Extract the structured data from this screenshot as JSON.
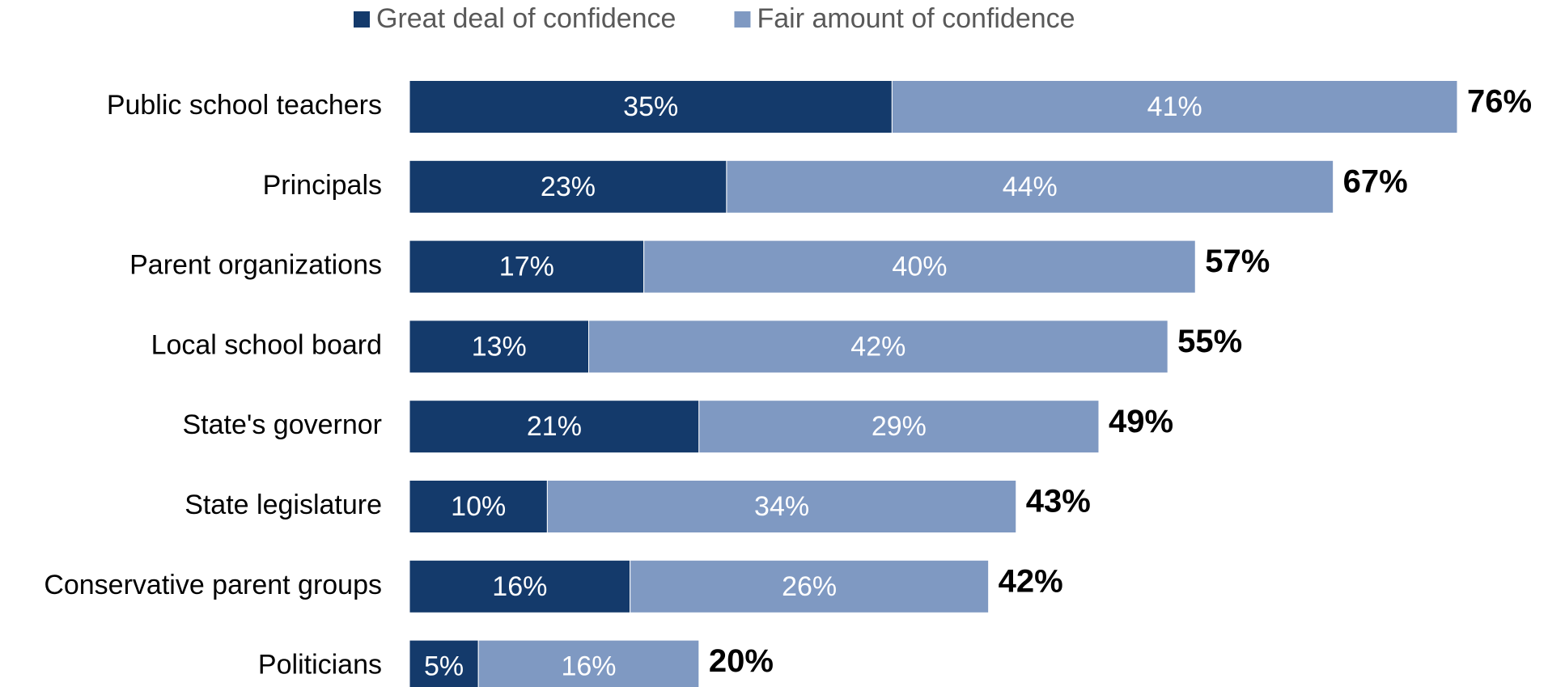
{
  "chart_data": {
    "type": "stacked-bar-horizontal",
    "categories": [
      "Public school teachers",
      "Principals",
      "Parent organizations",
      "Local school board",
      "State's governor",
      "State legislature",
      "Conservative parent groups",
      "Politicians"
    ],
    "series": [
      {
        "name": "Great deal of confidence",
        "color": "#143a6b",
        "values": [
          35,
          23,
          17,
          13,
          21,
          10,
          16,
          5
        ],
        "value_labels": [
          "35%",
          "23%",
          "17%",
          "13%",
          "21%",
          "10%",
          "16%",
          "5%"
        ]
      },
      {
        "name": "Fair amount of confidence",
        "color": "#7f99c2",
        "values": [
          41,
          44,
          40,
          42,
          29,
          34,
          26,
          16
        ],
        "value_labels": [
          "41%",
          "44%",
          "40%",
          "42%",
          "29%",
          "34%",
          "26%",
          "16%"
        ]
      }
    ],
    "totals": [
      76,
      67,
      57,
      55,
      49,
      43,
      42,
      20
    ],
    "total_labels": [
      "76%",
      "67%",
      "57%",
      "55%",
      "49%",
      "43%",
      "42%",
      "20%"
    ],
    "legend": "top"
  }
}
